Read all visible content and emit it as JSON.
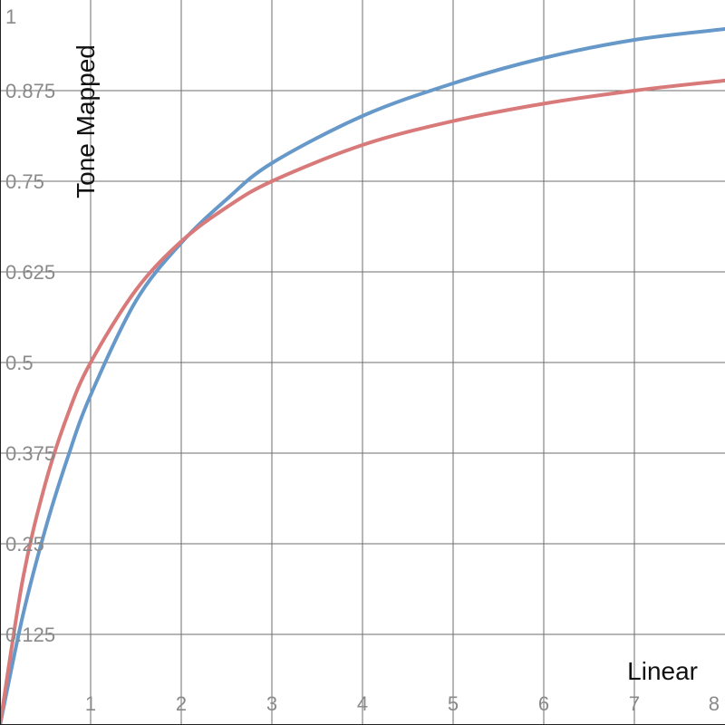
{
  "chart_data": {
    "type": "line",
    "title": "",
    "xlabel": "Linear",
    "ylabel": "Tone Mapped",
    "xlim": [
      0,
      8
    ],
    "ylim": [
      0,
      1
    ],
    "grid": true,
    "x_ticks": [
      {
        "value": 1,
        "label": "1"
      },
      {
        "value": 2,
        "label": "2"
      },
      {
        "value": 3,
        "label": "3"
      },
      {
        "value": 4,
        "label": "4"
      },
      {
        "value": 5,
        "label": "5"
      },
      {
        "value": 6,
        "label": "6"
      },
      {
        "value": 7,
        "label": "7"
      },
      {
        "value": 8,
        "label": "8"
      }
    ],
    "y_ticks": [
      {
        "value": 0.125,
        "label": "0.125"
      },
      {
        "value": 0.25,
        "label": "0.25"
      },
      {
        "value": 0.375,
        "label": "0.375"
      },
      {
        "value": 0.5,
        "label": "0.5"
      },
      {
        "value": 0.625,
        "label": "0.625"
      },
      {
        "value": 0.75,
        "label": "0.75"
      },
      {
        "value": 0.875,
        "label": "0.875"
      },
      {
        "value": 1,
        "label": "1"
      }
    ],
    "series": [
      {
        "color": "#6699c9",
        "x": [
          0,
          0.25,
          0.5,
          0.75,
          1,
          1.5,
          2,
          2.5,
          3,
          4,
          5,
          6,
          7,
          8
        ],
        "y": [
          0,
          0.15,
          0.27,
          0.37,
          0.455,
          0.585,
          0.665,
          0.725,
          0.775,
          0.84,
          0.885,
          0.92,
          0.945,
          0.96
        ]
      },
      {
        "color": "#d97a7a",
        "x": [
          0,
          0.25,
          0.5,
          0.75,
          1,
          1.5,
          2,
          2.5,
          3,
          4,
          5,
          6,
          7,
          8
        ],
        "y": [
          0,
          0.2,
          0.333,
          0.429,
          0.5,
          0.6,
          0.667,
          0.714,
          0.75,
          0.8,
          0.833,
          0.857,
          0.875,
          0.889
        ]
      }
    ]
  }
}
